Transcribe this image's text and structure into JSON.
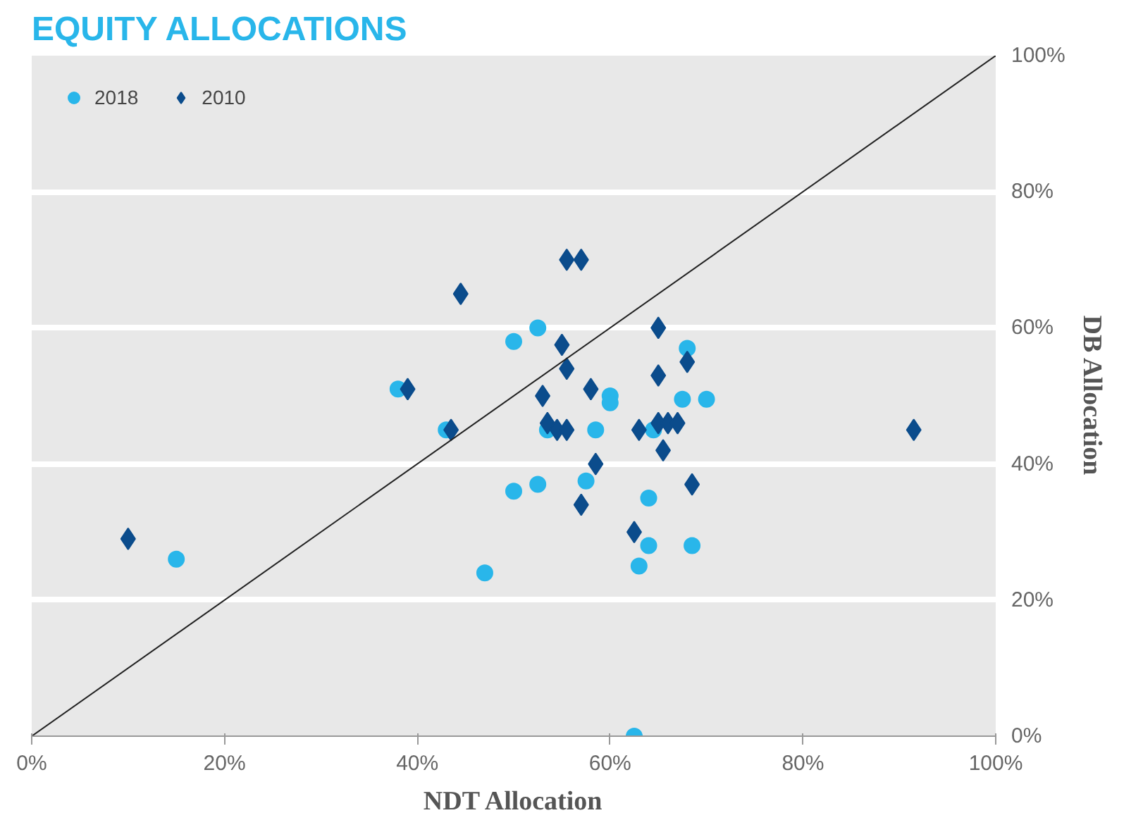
{
  "chart_data": {
    "type": "scatter",
    "title": "EQUITY ALLOCATIONS",
    "xlabel": "NDT Allocation",
    "ylabel": "DB Allocation",
    "xlim": [
      0,
      100
    ],
    "ylim": [
      0,
      100
    ],
    "xticks": [
      {
        "value": 0,
        "label": "0%"
      },
      {
        "value": 20,
        "label": "20%"
      },
      {
        "value": 40,
        "label": "40%"
      },
      {
        "value": 60,
        "label": "60%"
      },
      {
        "value": 80,
        "label": "80%"
      },
      {
        "value": 100,
        "label": "100%"
      }
    ],
    "yticks": [
      {
        "value": 0,
        "label": "0%"
      },
      {
        "value": 20,
        "label": "20%"
      },
      {
        "value": 40,
        "label": "40%"
      },
      {
        "value": 60,
        "label": "60%"
      },
      {
        "value": 80,
        "label": "80%"
      },
      {
        "value": 100,
        "label": "100%"
      }
    ],
    "grid": "y",
    "legend": "top left",
    "series": [
      {
        "name": "2018",
        "color": "#29b6ea",
        "marker": "circle",
        "x": [
          15,
          38,
          43,
          50,
          52.5,
          53.5,
          58.5,
          60,
          60,
          64.5,
          67.5,
          70,
          68,
          50,
          52.5,
          57.5,
          64,
          47,
          64,
          68.5,
          63,
          62.5
        ],
        "values": [
          26,
          51,
          45,
          58,
          60,
          45,
          45,
          50,
          49,
          45,
          49.5,
          49.5,
          57,
          36,
          37,
          37.5,
          35,
          24,
          28,
          28,
          25,
          0
        ]
      },
      {
        "name": "2010",
        "color": "#0b4c8c",
        "marker": "diamond",
        "x": [
          10,
          39,
          43.5,
          44.5,
          55.5,
          57,
          65,
          55,
          55.5,
          53,
          58,
          65,
          68,
          53.5,
          54.5,
          55.5,
          63,
          65,
          66,
          67,
          65.5,
          58.5,
          68.5,
          57,
          62.5,
          91.5
        ],
        "values": [
          29,
          51,
          45,
          65,
          70,
          70,
          60,
          57.5,
          54,
          50,
          51,
          53,
          55,
          46,
          45,
          45,
          45,
          46,
          46,
          46,
          42,
          40,
          37,
          34,
          30,
          45
        ]
      },
      {
        "type": "line",
        "color": "#222222",
        "x": [
          0,
          100
        ],
        "values": [
          0,
          100
        ]
      }
    ]
  }
}
